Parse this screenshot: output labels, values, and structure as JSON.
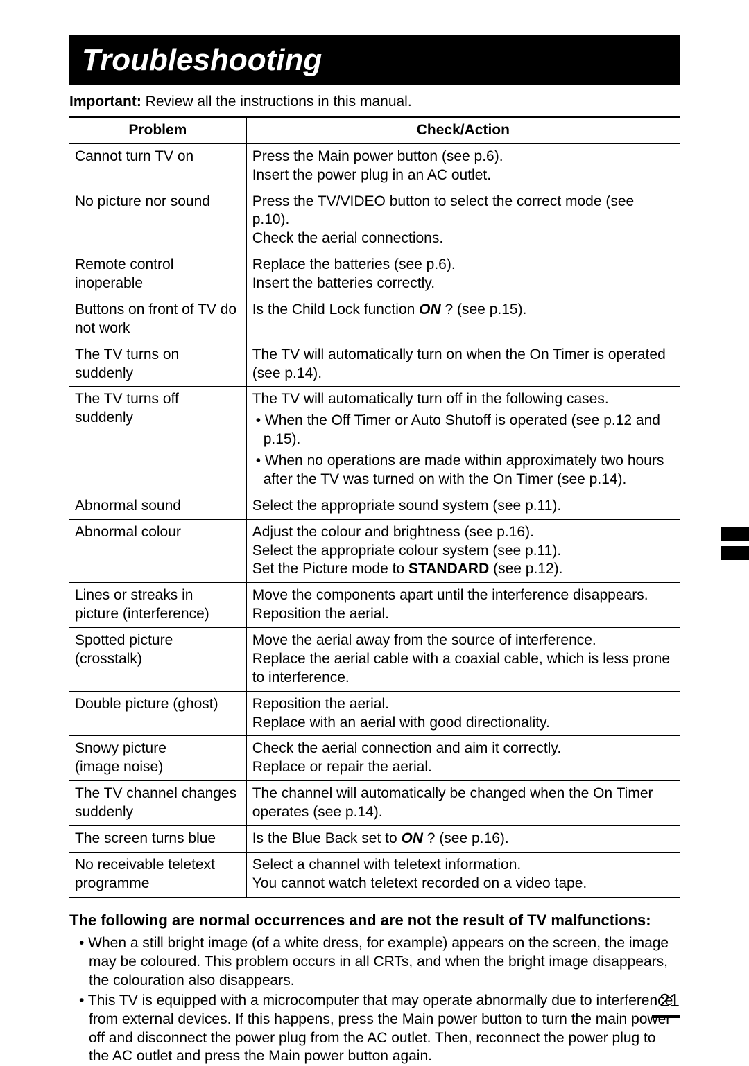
{
  "title": "Troubleshooting",
  "important": {
    "label": "Important:",
    "text": "  Review all the instructions in this manual."
  },
  "table": {
    "headers": [
      "Problem",
      "Check/Action"
    ],
    "rows": [
      {
        "problem": "Cannot turn TV on",
        "action_html": "Press the Main power button (see p.6).<br>Insert the power plug in an AC outlet."
      },
      {
        "problem": "No picture nor sound",
        "action_html": "Press the TV/VIDEO button to select the correct mode (see p.10).<br>Check the aerial connections."
      },
      {
        "problem": "Remote control inoperable",
        "action_html": "Replace the batteries (see p.6).<br>Insert the batteries correctly."
      },
      {
        "problem": "Buttons on front of TV do not work",
        "action_html": "Is the Child Lock function <span class=\"bold-italic\">ON</span> ? (see p.15)."
      },
      {
        "problem": "The TV turns on suddenly",
        "action_html": "The TV will automatically turn on when the On Timer is operated (see p.14)."
      },
      {
        "problem": "The TV turns off suddenly",
        "action_html": "The TV will automatically turn off in the following cases.<div class=\"bullet-item\">• When the Off Timer or Auto Shutoff is operated (see p.12 and p.15).</div><div class=\"bullet-item\">• When no operations are made within approximately two hours after the TV was turned on with the On Timer (see p.14).</div>"
      },
      {
        "problem": "Abnormal sound",
        "action_html": "Select the appropriate sound system (see p.11)."
      },
      {
        "problem": "Abnormal colour",
        "action_html": "Adjust the colour and brightness (see p.16).<br>Select the appropriate colour system (see p.11).<br>Set the Picture mode to <span class=\"bold\">STANDARD</span> (see p.12)."
      },
      {
        "problem": "Lines or streaks in picture (interference)",
        "action_html": "Move the components apart until the interference disappears.<br>Reposition the aerial."
      },
      {
        "problem": "Spotted picture (crosstalk)",
        "action_html": "Move the aerial away from the source of interference.<br>Replace the aerial cable with a coaxial cable, which is less prone to interference."
      },
      {
        "problem": "Double picture (ghost)",
        "action_html": "Reposition the aerial.<br>Replace with an aerial with good directionality."
      },
      {
        "problem": "Snowy picture<br>(image noise)",
        "action_html": "Check the aerial connection and aim it correctly.<br>Replace or repair the aerial."
      },
      {
        "problem": "The TV channel changes suddenly",
        "action_html": "The channel will automatically be changed when the On Timer operates (see p.14)."
      },
      {
        "problem": "The screen turns blue",
        "action_html": "Is the Blue Back set to <span class=\"bold-italic\">ON</span> ? (see p.16)."
      },
      {
        "problem": "No receivable teletext programme",
        "action_html": "Select a channel with teletext information.<br>You cannot watch teletext recorded on a video tape."
      }
    ]
  },
  "normal_section": {
    "heading": "The following are normal occurrences and are not the result of TV malfunctions:",
    "bullets": [
      "When a still bright image (of a white dress, for example) appears on the screen, the image may be coloured. This problem occurs in all CRTs, and when the bright image disappears, the colouration also disappears.",
      "This TV is equipped with a microcomputer that may operate abnormally due to interference from external devices. If this happens, press the Main power button to turn the main power off and disconnect the power plug from the AC outlet. Then, reconnect the power plug to the AC outlet and press the Main power button again."
    ]
  },
  "page_number": "21",
  "colors": {
    "background": "#ffffff",
    "text": "#000000",
    "title_bg": "#000000",
    "title_text": "#ffffff"
  }
}
